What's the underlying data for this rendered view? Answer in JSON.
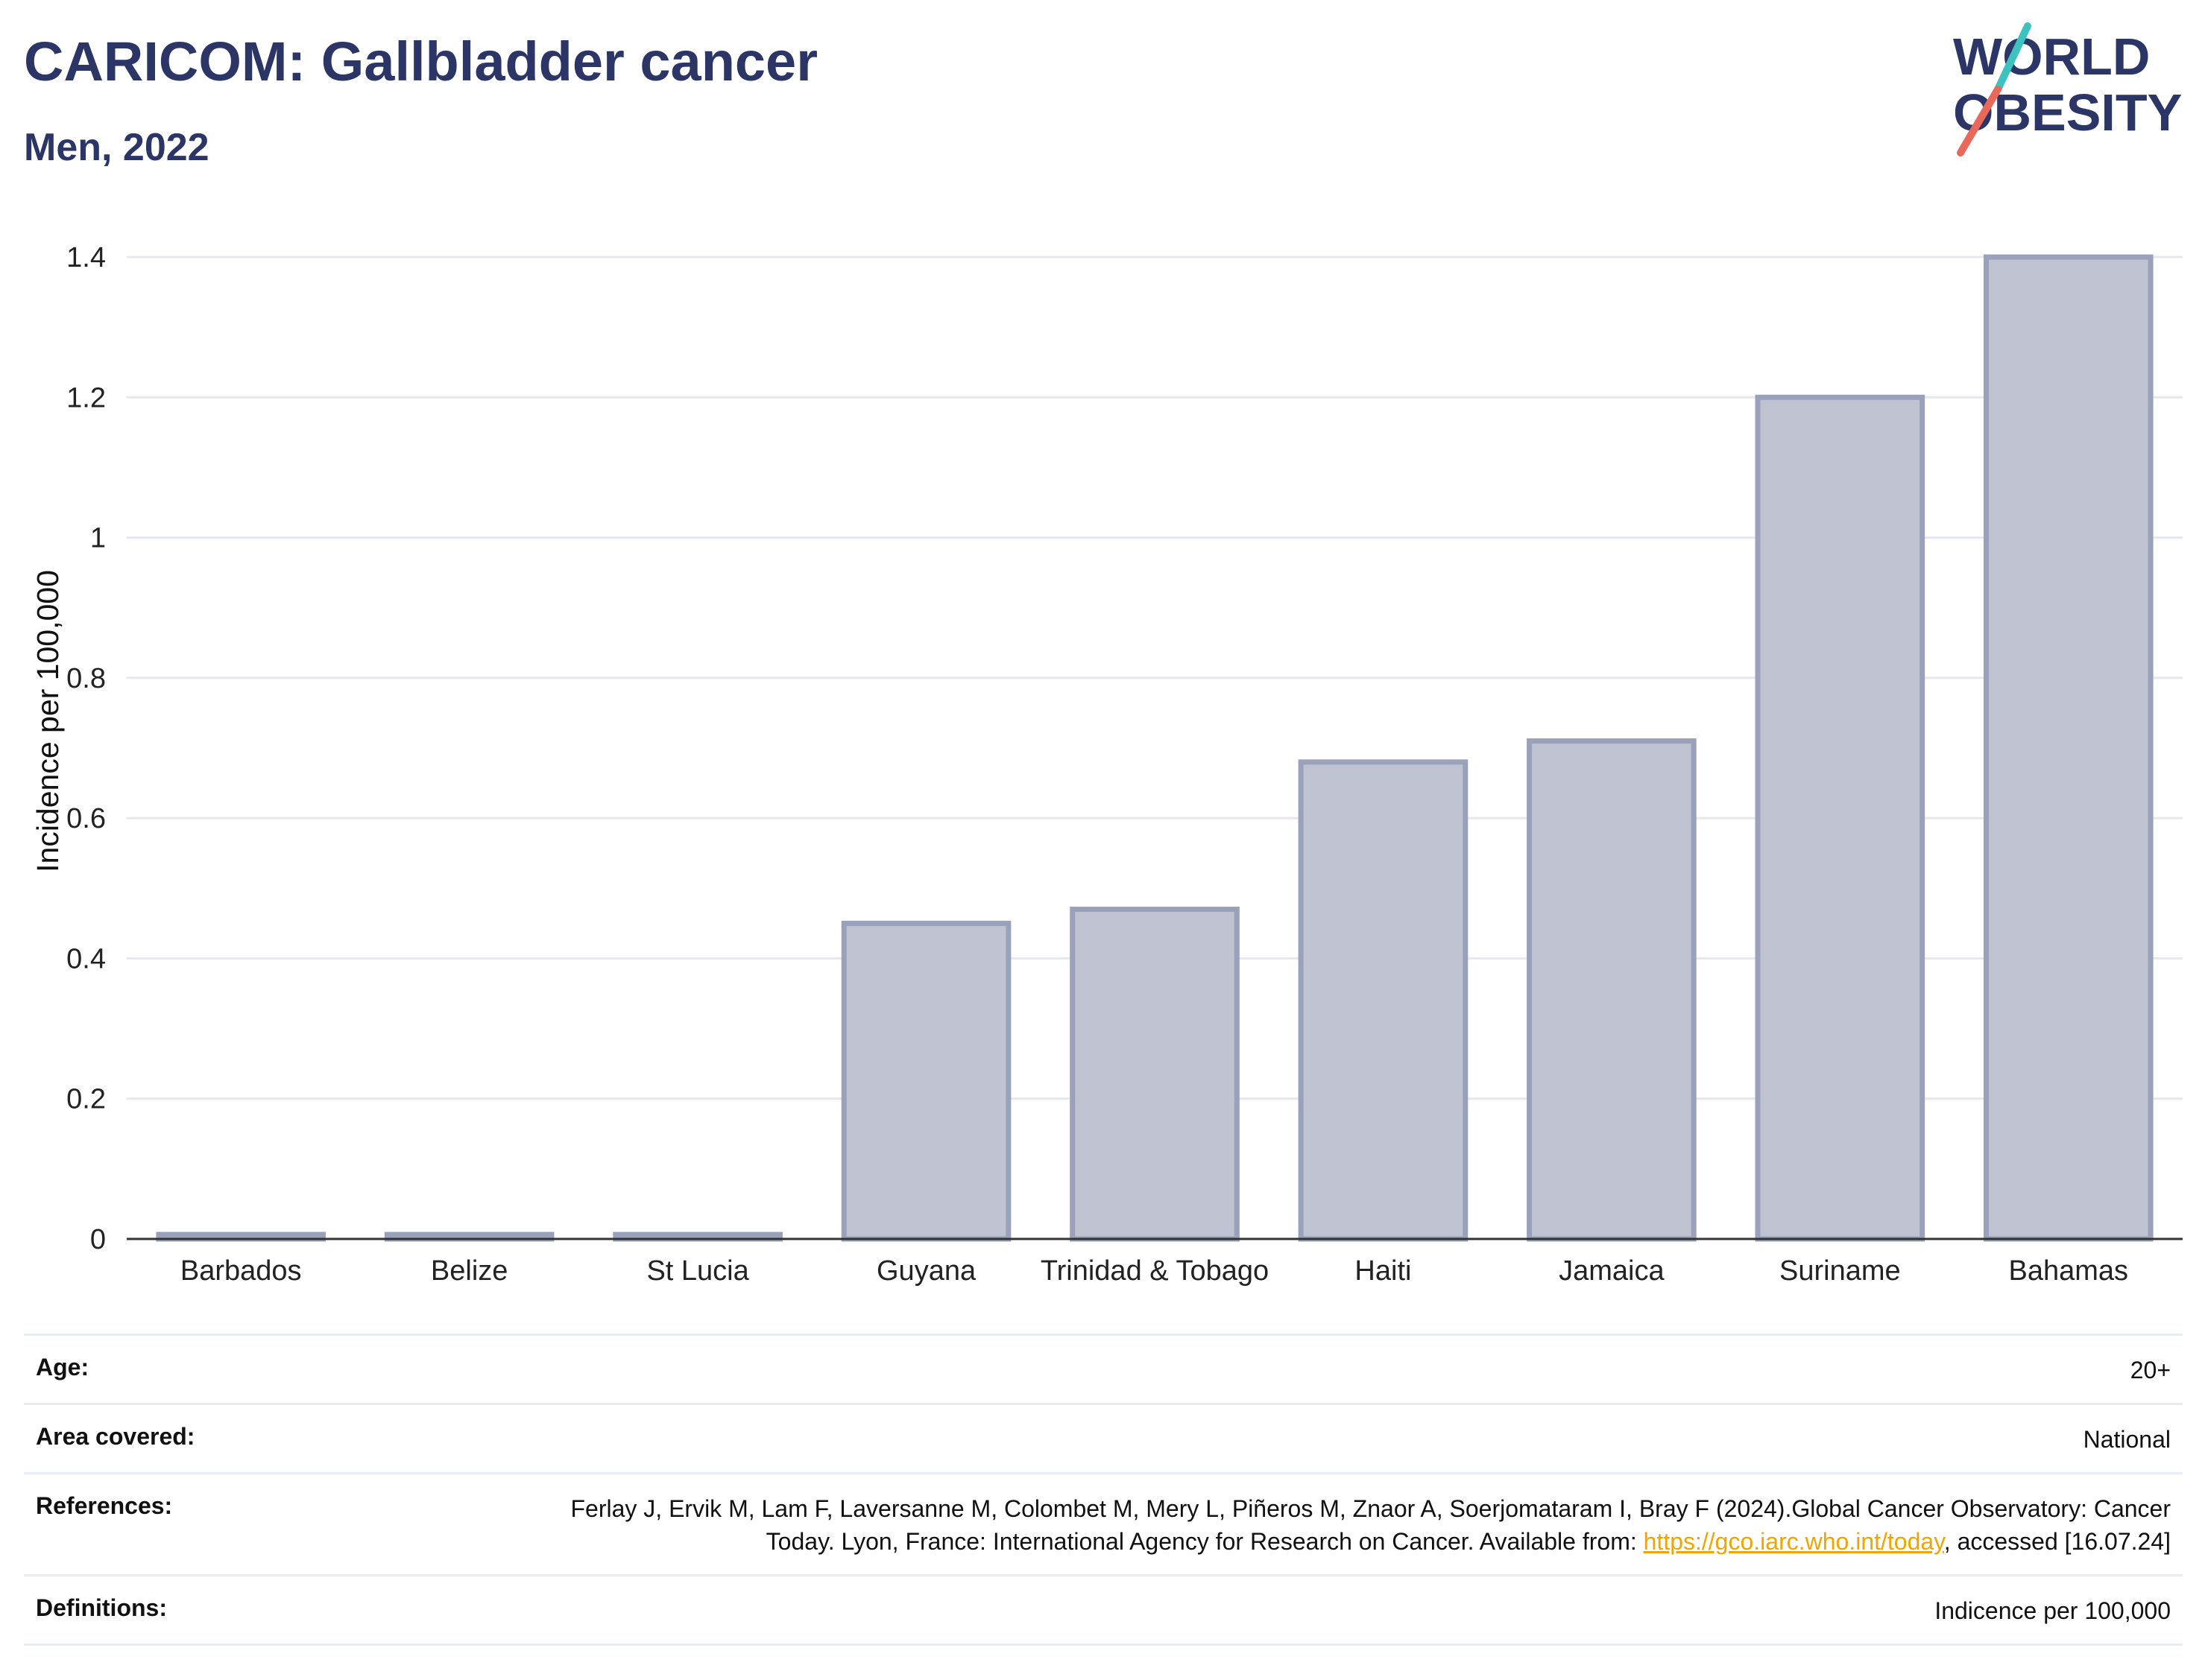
{
  "header": {
    "title": "CARICOM: Gallbladder cancer",
    "subtitle": "Men, 2022"
  },
  "logo": {
    "line1": "WORLD",
    "line2": "OBESITY",
    "colors": {
      "text": "#2b3566",
      "slash_top": "#3cc3c0",
      "slash_bottom": "#e8685a"
    }
  },
  "colors": {
    "bar_fill": "#bfc3d1",
    "bar_stroke": "#9aa1bb",
    "axis": "#333333",
    "grid": "#e6e8ee",
    "title": "#2b3566",
    "link": "#f0a500"
  },
  "chart_data": {
    "type": "bar",
    "categories": [
      "Barbados",
      "Belize",
      "St Lucia",
      "Guyana",
      "Trinidad & Tobago",
      "Haiti",
      "Jamaica",
      "Suriname",
      "Bahamas"
    ],
    "values": [
      0,
      0,
      0,
      0.45,
      0.47,
      0.68,
      0.71,
      1.2,
      1.4
    ],
    "ylabel": "Incidence per 100,000",
    "ylim": [
      0,
      1.4
    ],
    "yticks": [
      "0",
      "0.2",
      "0.4",
      "0.6",
      "0.8",
      "1",
      "1.2",
      "1.4"
    ],
    "grid": true
  },
  "info": {
    "age_label": "Age:",
    "age_value": "20+",
    "area_label": "Area covered:",
    "area_value": "National",
    "references_label": "References:",
    "references_text_1": "Ferlay J, Ervik M, Lam F, Laversanne M, Colombet M, Mery L, Piñeros M, Znaor A, Soerjomataram I, Bray F (2024).Global Cancer Observatory: Cancer Today. Lyon, France: International Agency for Research on Cancer. Available from: ",
    "references_link": "https://gco.iarc.who.int/today",
    "references_text_2": ", accessed [16.07.24]",
    "definitions_label": "Definitions:",
    "definitions_value": "Indicence per 100,000"
  }
}
